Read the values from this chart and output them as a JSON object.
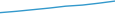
{
  "years": [
    2015,
    2016,
    2017,
    2018,
    2019,
    2020,
    2021,
    2022
  ],
  "values": [
    10.5,
    11.0,
    11.6,
    12.2,
    12.9,
    13.3,
    14.0,
    14.8
  ],
  "line_color": "#3399cc",
  "line_width": 1.0,
  "background_color": "#ffffff",
  "ylim": [
    10.0,
    15.5
  ],
  "xlim": [
    2015,
    2022
  ]
}
